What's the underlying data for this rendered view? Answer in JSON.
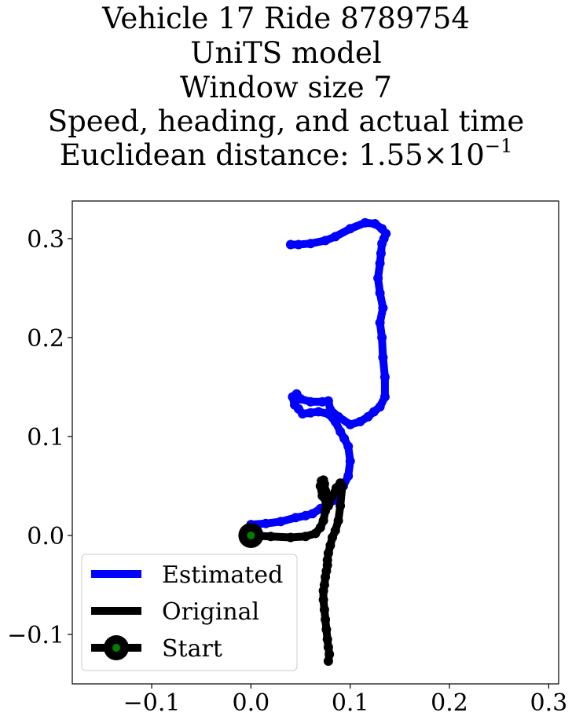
{
  "title_lines": [
    "Vehicle 17 Ride 8789754",
    "UniTS model",
    "Window size 7",
    "Speed, heading, and actual time"
  ],
  "title_last": {
    "prefix": "Euclidean distance: ",
    "mantissa": "1.55",
    "times": "×",
    "base": "10",
    "exponent": "−1"
  },
  "chart_data": {
    "type": "line",
    "xlim": [
      -0.18,
      0.31
    ],
    "ylim": [
      -0.15,
      0.338
    ],
    "xticks": [
      -0.1,
      0.0,
      0.1,
      0.2,
      0.3
    ],
    "xtick_labels": [
      "−0.1",
      "0.0",
      "0.1",
      "0.2",
      "0.3"
    ],
    "yticks": [
      -0.1,
      0.0,
      0.1,
      0.2,
      0.3
    ],
    "ytick_labels": [
      "−0.1",
      "0.0",
      "0.1",
      "0.2",
      "0.3"
    ],
    "grid": false,
    "legend_position": "lower-left",
    "series": [
      {
        "name": "Estimated",
        "color": "#0000ff",
        "x": [
          0.0,
          0.015,
          0.03,
          0.045,
          0.055,
          0.062,
          0.07,
          0.078,
          0.085,
          0.089,
          0.093,
          0.098,
          0.1,
          0.098,
          0.094,
          0.09,
          0.085,
          0.078,
          0.068,
          0.06,
          0.052,
          0.048,
          0.044,
          0.042,
          0.046,
          0.05,
          0.06,
          0.072,
          0.078,
          0.08,
          0.088,
          0.1,
          0.11,
          0.118,
          0.124,
          0.13,
          0.135,
          0.135,
          0.133,
          0.132,
          0.13,
          0.133,
          0.13,
          0.128,
          0.13,
          0.131,
          0.132,
          0.134,
          0.136,
          0.132,
          0.125,
          0.115,
          0.1,
          0.085,
          0.075,
          0.06,
          0.048,
          0.04
        ],
        "y": [
          0.011,
          0.012,
          0.014,
          0.018,
          0.02,
          0.022,
          0.027,
          0.032,
          0.036,
          0.042,
          0.05,
          0.06,
          0.075,
          0.09,
          0.098,
          0.105,
          0.115,
          0.123,
          0.125,
          0.124,
          0.123,
          0.128,
          0.132,
          0.14,
          0.143,
          0.138,
          0.135,
          0.135,
          0.136,
          0.127,
          0.12,
          0.112,
          0.115,
          0.12,
          0.125,
          0.13,
          0.14,
          0.16,
          0.18,
          0.2,
          0.215,
          0.23,
          0.245,
          0.26,
          0.275,
          0.285,
          0.295,
          0.3,
          0.305,
          0.31,
          0.315,
          0.316,
          0.31,
          0.302,
          0.298,
          0.295,
          0.294,
          0.294
        ]
      },
      {
        "name": "Original",
        "color": "#000000",
        "x": [
          0.0,
          0.02,
          0.04,
          0.055,
          0.065,
          0.07,
          0.073,
          0.075,
          0.076,
          0.075,
          0.074,
          0.073,
          0.071,
          0.07,
          0.072,
          0.078,
          0.082,
          0.086,
          0.09,
          0.092,
          0.09,
          0.088,
          0.085,
          0.082,
          0.08,
          0.078,
          0.077,
          0.077,
          0.076,
          0.075,
          0.074,
          0.073,
          0.073,
          0.074,
          0.075,
          0.076,
          0.077,
          0.078,
          0.079,
          0.078
        ],
        "y": [
          0.0,
          -0.001,
          -0.002,
          -0.001,
          0.002,
          0.008,
          0.015,
          0.025,
          0.035,
          0.045,
          0.052,
          0.056,
          0.055,
          0.05,
          0.04,
          0.03,
          0.04,
          0.048,
          0.053,
          0.05,
          0.03,
          0.015,
          0.005,
          -0.002,
          -0.01,
          -0.018,
          -0.025,
          -0.03,
          -0.036,
          -0.042,
          -0.05,
          -0.056,
          -0.065,
          -0.075,
          -0.085,
          -0.095,
          -0.105,
          -0.113,
          -0.12,
          -0.127
        ]
      }
    ],
    "start_point": {
      "name": "Start",
      "x": 0.0,
      "y": 0.0,
      "outer_color": "#000000",
      "inner_color": "#008000"
    }
  }
}
